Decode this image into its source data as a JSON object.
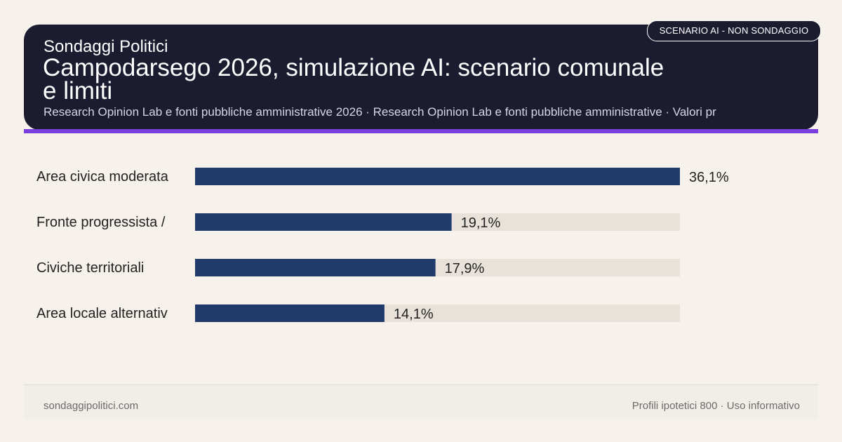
{
  "header": {
    "brand": "Sondaggi Politici",
    "source": "Research Opinion Lab e fonti pubbliche amministrative 2026 · Research Opinion Lab e fonti pubbliche amministrative · Valori pr",
    "badge": "SCENARIO AI - NON SONDAGGIO"
  },
  "colors": {
    "header_bg": "#1c1c30",
    "accent": "#7b3fe0",
    "bar": "#1f3a6b",
    "track": "#e8e2da",
    "background": "#f6f2eb"
  },
  "chart_data": {
    "type": "bar",
    "orientation": "horizontal",
    "title": "Campodarsego 2026, simulazione AI: scenario comunale e limiti",
    "categories": [
      "Area civica moderata",
      "Fronte progressista /",
      "Civiche territoriali",
      "Area locale alternativ"
    ],
    "values": [
      36.1,
      19.1,
      17.9,
      14.1
    ],
    "value_labels": [
      "36,1%",
      "19,1%",
      "17,9%",
      "14,1%"
    ],
    "xlim": [
      0,
      36.1
    ],
    "grid": false,
    "legend": "none"
  },
  "footer": {
    "site": "sondaggipolitici.com",
    "note": "Profili ipotetici 800 · Uso informativo"
  }
}
